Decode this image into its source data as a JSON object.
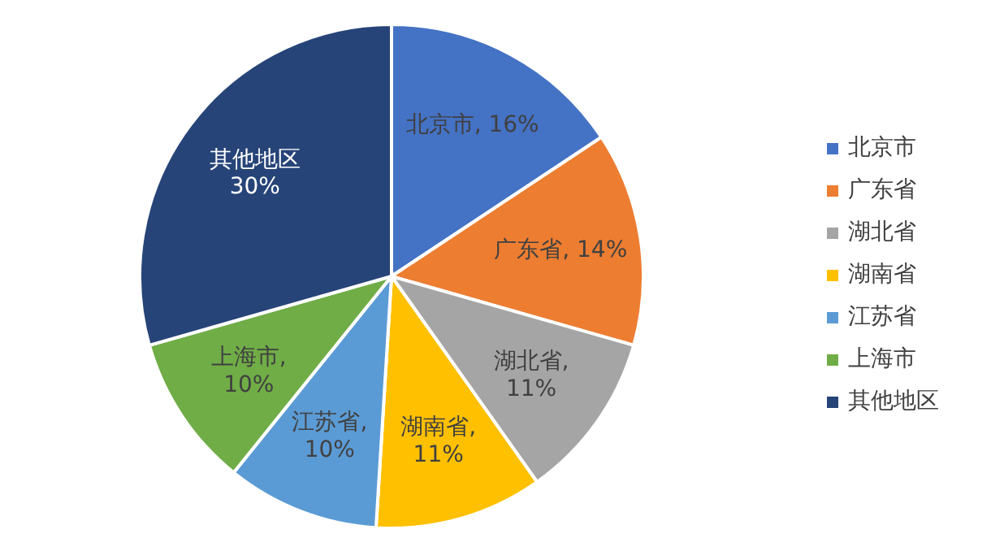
{
  "chart_data": {
    "type": "pie",
    "categories": [
      "北京市",
      "广东省",
      "湖北省",
      "湖南省",
      "江苏省",
      "上海市",
      "其他地区"
    ],
    "values": [
      16,
      14,
      11,
      11,
      10,
      10,
      30
    ],
    "value_labels": [
      "北京市, 16%",
      "广东省, 14%",
      "湖北省, 11%",
      "湖南省, 11%",
      "江苏省, 10%",
      "上海市, 10%",
      "其他地区 30%"
    ],
    "colors": [
      "#4472c4",
      "#ed7d31",
      "#a5a5a5",
      "#ffc000",
      "#5b9bd5",
      "#70ad47",
      "#264478"
    ],
    "legend": "right"
  }
}
